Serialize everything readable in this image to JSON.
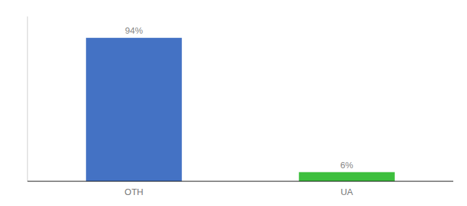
{
  "chart_data": {
    "type": "bar",
    "categories": [
      "OTH",
      "UA"
    ],
    "values": [
      94,
      6
    ],
    "value_labels": [
      "94%",
      "6%"
    ],
    "colors": [
      "#4472C4",
      "#3DBF3D"
    ],
    "ylim": [
      0,
      108
    ],
    "yticks": [],
    "data_labels": true,
    "tick_labels": "x"
  }
}
